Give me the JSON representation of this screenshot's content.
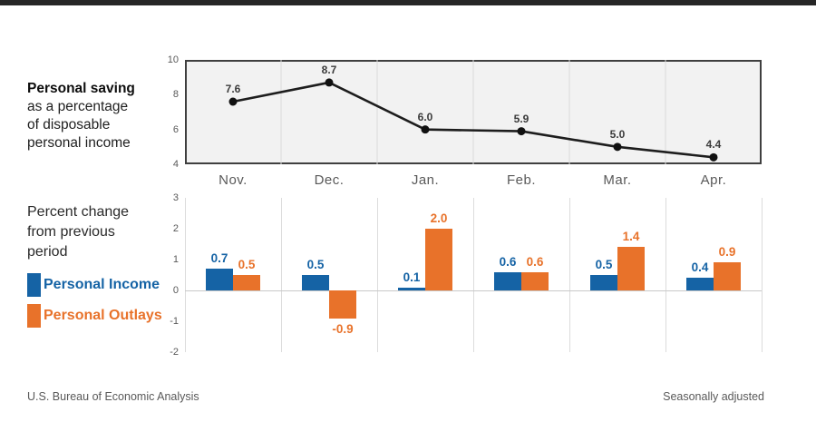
{
  "page": {
    "top_bar_color": "#262626",
    "accent_blue": "#1563A5",
    "accent_orange": "#E8722A"
  },
  "left_panel": {
    "saving_title_bold": "Personal saving",
    "saving_line2": "as a percentage",
    "saving_line3": "of disposable",
    "saving_line4": "personal income",
    "change_line1": "Percent change",
    "change_line2": "from previous",
    "change_line3": "period"
  },
  "legend": {
    "items": [
      {
        "label": "Personal Income",
        "color": "#1563A5",
        "icon": "blue-swatch-icon"
      },
      {
        "label": "Personal Outlays",
        "color": "#E8722A",
        "icon": "orange-swatch-icon"
      }
    ]
  },
  "footer": {
    "source": "U.S. Bureau of Economic Analysis",
    "note": "Seasonally adjusted"
  },
  "chart_data": [
    {
      "type": "line",
      "title": "Personal saving as a percentage of disposable personal income",
      "categories": [
        "Nov.",
        "Dec.",
        "Jan.",
        "Feb.",
        "Mar.",
        "Apr."
      ],
      "values": [
        7.6,
        8.7,
        6.0,
        5.9,
        5.0,
        4.4
      ],
      "ylim": [
        4,
        10
      ],
      "yticks": [
        10,
        8,
        6,
        4
      ],
      "line_color": "#1d1d1d",
      "marker_color": "#111111",
      "plot_bg": "#f2f2f2",
      "border_color": "#3f3f3f",
      "grid": true,
      "grid_color": "#d9d9d9",
      "legend_position": "none"
    },
    {
      "type": "bar",
      "title": "Percent change from previous period",
      "categories": [
        "Nov.",
        "Dec.",
        "Jan.",
        "Feb.",
        "Mar.",
        "Apr."
      ],
      "series": [
        {
          "name": "Personal Income",
          "color": "#1563A5",
          "values": [
            0.7,
            0.5,
            0.1,
            0.6,
            0.5,
            0.4
          ]
        },
        {
          "name": "Personal Outlays",
          "color": "#E8722A",
          "values": [
            0.5,
            -0.9,
            2.0,
            0.6,
            1.4,
            0.9
          ]
        }
      ],
      "ylim": [
        -2,
        3
      ],
      "yticks": [
        3,
        2,
        1,
        0,
        -1,
        -2
      ],
      "grid": true,
      "grid_color": "#dcdcdc",
      "zero_line_color": "#c9c9c9",
      "legend_position": "left"
    }
  ]
}
